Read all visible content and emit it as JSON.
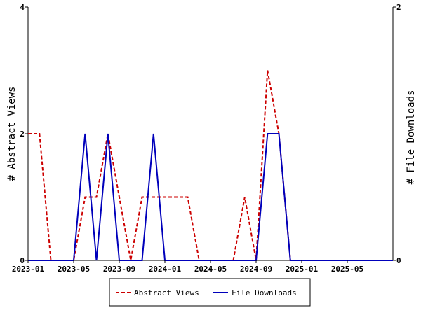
{
  "chart_data": {
    "type": "line",
    "x_ticks": [
      "2023-01",
      "2023-05",
      "2023-09",
      "2024-01",
      "2024-05",
      "2024-09",
      "2025-01",
      "2025-05"
    ],
    "x_range": [
      "2023-01",
      "2025-09"
    ],
    "left_axis": {
      "label": "# Abstract Views",
      "range": [
        0,
        4
      ],
      "ticks": [
        "0",
        "2",
        "4"
      ]
    },
    "right_axis": {
      "label": "# File Downloads",
      "range": [
        0,
        2
      ],
      "ticks": [
        "0",
        "2"
      ]
    },
    "grid": false,
    "legend_position": "bottom",
    "series": [
      {
        "name": "Abstract Views",
        "axis": "left",
        "color": "#cc0000",
        "style": "dashed",
        "x": [
          "2023-01",
          "2023-02",
          "2023-03",
          "2023-04",
          "2023-05",
          "2023-06",
          "2023-07",
          "2023-08",
          "2023-09",
          "2023-10",
          "2023-11",
          "2023-12",
          "2024-01",
          "2024-02",
          "2024-03",
          "2024-04",
          "2024-05",
          "2024-06",
          "2024-07",
          "2024-08",
          "2024-09",
          "2024-10",
          "2024-11",
          "2024-12",
          "2025-01",
          "2025-02",
          "2025-03",
          "2025-04",
          "2025-05",
          "2025-06",
          "2025-07",
          "2025-08",
          "2025-09"
        ],
        "values": [
          2,
          2,
          0,
          0,
          0,
          1,
          1,
          2,
          1,
          0,
          1,
          1,
          1,
          1,
          1,
          0,
          0,
          0,
          0,
          1,
          0,
          3,
          2,
          0,
          0,
          0,
          0,
          0,
          0,
          0,
          0,
          0,
          0
        ]
      },
      {
        "name": "File Downloads",
        "axis": "right",
        "color": "#0000bb",
        "style": "solid",
        "x": [
          "2023-01",
          "2023-02",
          "2023-03",
          "2023-04",
          "2023-05",
          "2023-06",
          "2023-07",
          "2023-08",
          "2023-09",
          "2023-10",
          "2023-11",
          "2023-12",
          "2024-01",
          "2024-02",
          "2024-03",
          "2024-04",
          "2024-05",
          "2024-06",
          "2024-07",
          "2024-08",
          "2024-09",
          "2024-10",
          "2024-11",
          "2024-12",
          "2025-01",
          "2025-02",
          "2025-03",
          "2025-04",
          "2025-05",
          "2025-06",
          "2025-07",
          "2025-08",
          "2025-09"
        ],
        "values": [
          0,
          0,
          0,
          0,
          0,
          1,
          0,
          1,
          0,
          0,
          0,
          1,
          0,
          0,
          0,
          0,
          0,
          0,
          0,
          0,
          0,
          1,
          1,
          0,
          0,
          0,
          0,
          0,
          0,
          0,
          0,
          0,
          0
        ]
      }
    ]
  }
}
